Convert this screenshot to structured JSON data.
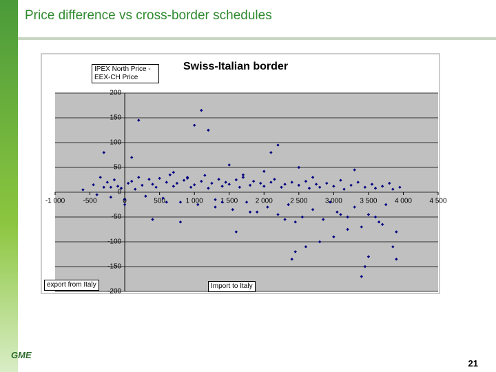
{
  "page_title": "Price difference vs cross-border schedules",
  "page_number": "21",
  "logo": "GME",
  "chart_data": {
    "type": "scatter",
    "title": "Swiss-Italian border",
    "y_label": "IPEX North Price - EEX-CH Price",
    "x_label_left": "export from Italy",
    "x_label_right": "Import to Italy",
    "color": "#000080",
    "xlim": [
      -1000,
      4500
    ],
    "ylim": [
      -200,
      200
    ],
    "xticks": [
      {
        "value": -1000,
        "label": "-1 000"
      },
      -500,
      0,
      500,
      {
        "value": 1000,
        "label": "1 000"
      },
      {
        "value": 1500,
        "label": "1 500"
      },
      {
        "value": 2000,
        "label": "2 000"
      },
      {
        "value": 2500,
        "label": "2 500"
      },
      {
        "value": 3000,
        "label": "3 000"
      },
      {
        "value": 3500,
        "label": "3 500"
      },
      {
        "value": 4000,
        "label": "4 000"
      },
      {
        "value": 4500,
        "label": "4 500"
      }
    ],
    "yticks": [
      200,
      150,
      100,
      50,
      0,
      -50,
      -100,
      -150,
      -200
    ],
    "grid": true,
    "x": [
      -600,
      -450,
      -400,
      -350,
      -300,
      -250,
      -200,
      -150,
      -100,
      -50,
      0,
      50,
      100,
      150,
      200,
      250,
      300,
      350,
      400,
      450,
      500,
      550,
      600,
      650,
      700,
      750,
      800,
      850,
      900,
      950,
      1000,
      1050,
      1100,
      1150,
      1200,
      1250,
      1300,
      1350,
      1400,
      1450,
      1500,
      1550,
      1600,
      1650,
      1700,
      1750,
      1800,
      1850,
      1900,
      1950,
      2000,
      2050,
      2100,
      2150,
      2200,
      2250,
      2300,
      2350,
      2400,
      2450,
      2500,
      2550,
      2600,
      2650,
      2700,
      2750,
      2800,
      2850,
      2900,
      2950,
      3000,
      3050,
      3100,
      3150,
      3200,
      3250,
      3300,
      3350,
      3400,
      3450,
      3500,
      3550,
      3600,
      3650,
      3700,
      3750,
      3800,
      3850,
      3900,
      3950,
      200,
      1100,
      1000,
      1200,
      -300,
      100,
      2100,
      2200,
      2400,
      2450,
      2600,
      3400,
      3450,
      3500,
      3900,
      3850,
      3000,
      1600,
      400,
      800,
      3200,
      2800,
      3700,
      1500,
      2500,
      3300,
      0,
      -200,
      600,
      1800,
      700,
      1300,
      1700,
      2300,
      2700,
      3100,
      3600,
      900,
      1400,
      2000
    ],
    "y": [
      5,
      15,
      -5,
      30,
      10,
      20,
      -10,
      25,
      12,
      8,
      -15,
      18,
      22,
      6,
      30,
      14,
      -8,
      26,
      16,
      10,
      28,
      -12,
      20,
      35,
      12,
      18,
      -20,
      24,
      30,
      10,
      15,
      -25,
      22,
      34,
      8,
      18,
      -30,
      26,
      12,
      20,
      16,
      -35,
      25,
      10,
      30,
      -20,
      14,
      22,
      -40,
      18,
      12,
      -30,
      20,
      26,
      -45,
      10,
      16,
      -25,
      20,
      -60,
      14,
      -50,
      22,
      8,
      -35,
      16,
      10,
      -55,
      18,
      -20,
      12,
      -40,
      24,
      6,
      -50,
      14,
      -30,
      20,
      -70,
      10,
      -45,
      16,
      8,
      -60,
      12,
      -25,
      18,
      6,
      -80,
      10,
      145,
      165,
      135,
      125,
      80,
      70,
      80,
      95,
      -135,
      -120,
      -110,
      -170,
      -150,
      -130,
      -135,
      -110,
      -90,
      -80,
      -55,
      -60,
      -75,
      -100,
      -65,
      55,
      50,
      45,
      -25,
      10,
      -20,
      -40,
      40,
      -15,
      35,
      -55,
      30,
      -45,
      -50,
      28,
      -20,
      42
    ]
  }
}
